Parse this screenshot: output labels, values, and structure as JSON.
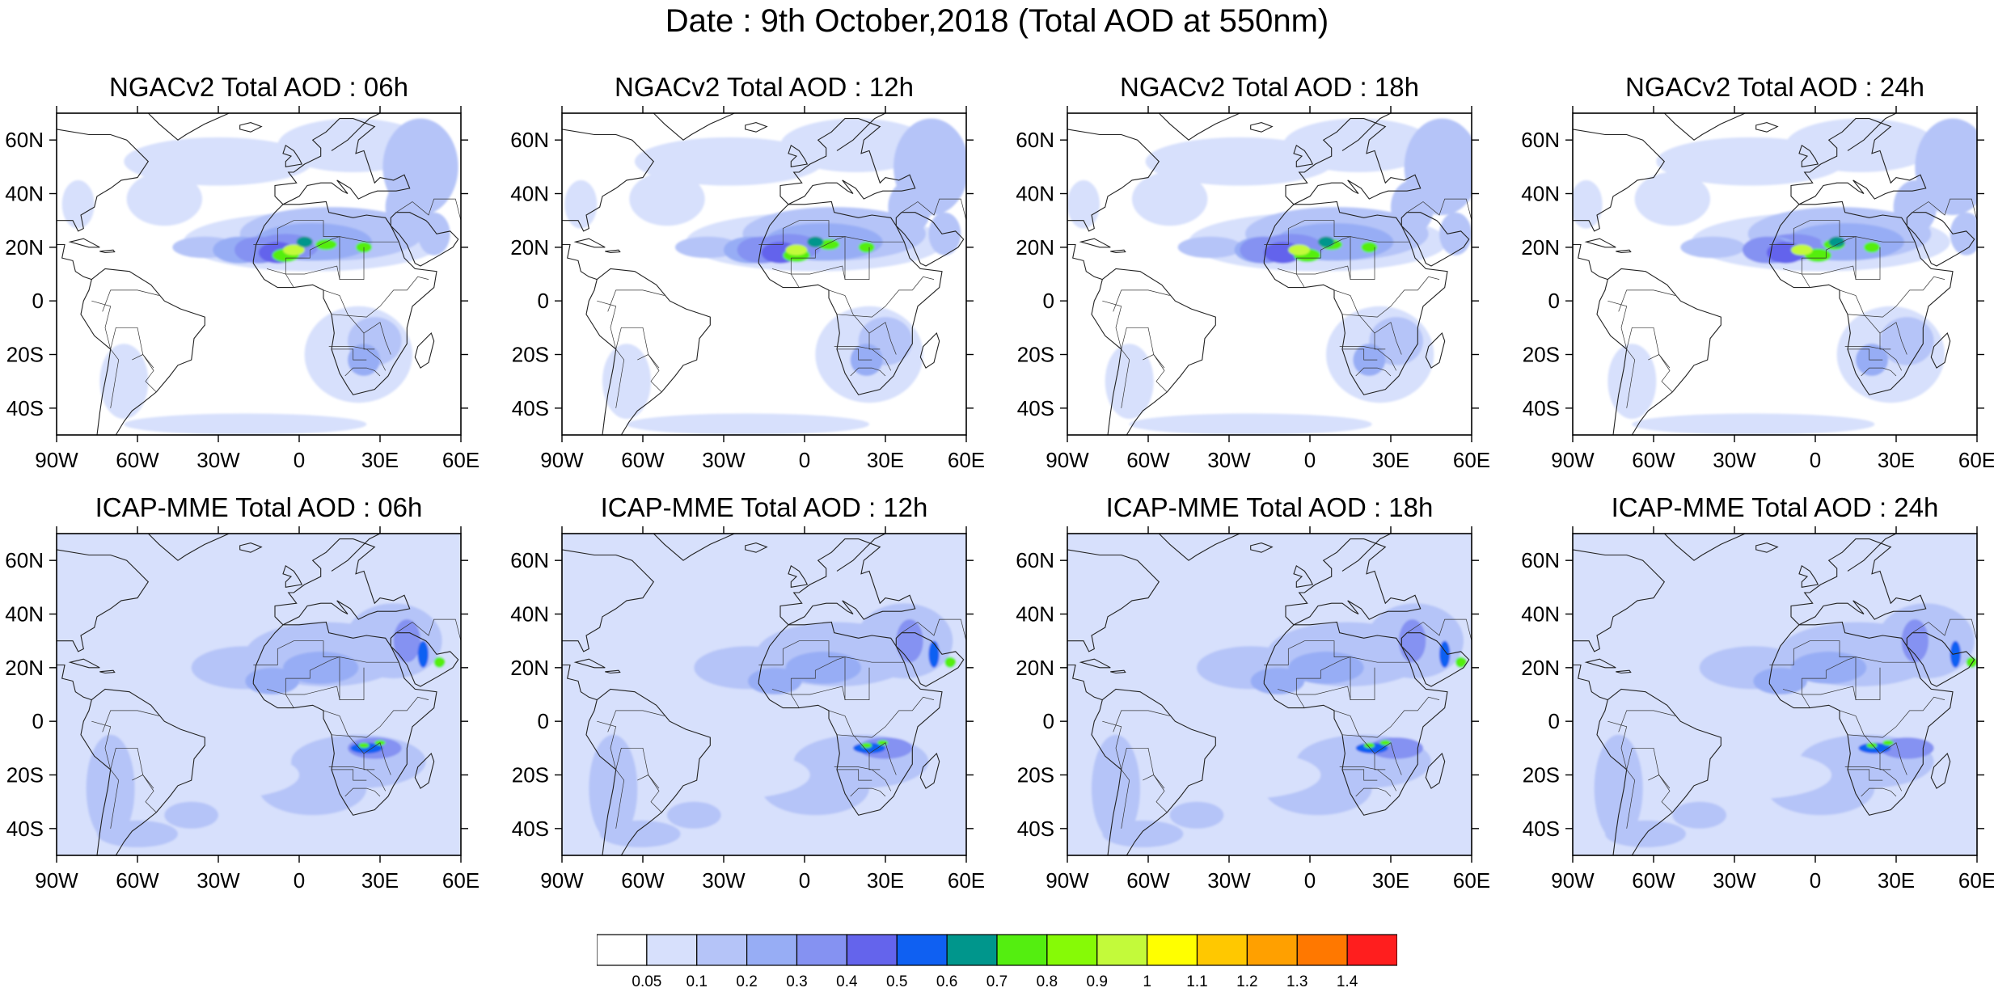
{
  "title": "Date : 9th October,2018 (Total AOD at 550nm)",
  "panels": [
    {
      "title": "NGACv2 Total AOD : 06h",
      "model": "NGACv2",
      "hour": "06h"
    },
    {
      "title": "NGACv2 Total AOD : 12h",
      "model": "NGACv2",
      "hour": "12h"
    },
    {
      "title": "NGACv2 Total AOD : 18h",
      "model": "NGACv2",
      "hour": "18h"
    },
    {
      "title": "NGACv2 Total AOD : 24h",
      "model": "NGACv2",
      "hour": "24h"
    },
    {
      "title": "ICAP-MME Total AOD : 06h",
      "model": "ICAP-MME",
      "hour": "06h"
    },
    {
      "title": "ICAP-MME Total AOD : 12h",
      "model": "ICAP-MME",
      "hour": "12h"
    },
    {
      "title": "ICAP-MME Total AOD : 18h",
      "model": "ICAP-MME",
      "hour": "18h"
    },
    {
      "title": "ICAP-MME Total AOD : 24h",
      "model": "ICAP-MME",
      "hour": "24h"
    }
  ],
  "map": {
    "lon_range": [
      -90,
      60
    ],
    "lat_range": [
      -50,
      70
    ],
    "lon_ticks": [
      {
        "value": -90,
        "label": "90W"
      },
      {
        "value": -60,
        "label": "60W"
      },
      {
        "value": -30,
        "label": "30W"
      },
      {
        "value": 0,
        "label": "0"
      },
      {
        "value": 30,
        "label": "30E"
      },
      {
        "value": 60,
        "label": "60E"
      }
    ],
    "lat_ticks": [
      {
        "value": 60,
        "label": "60N"
      },
      {
        "value": 40,
        "label": "40N"
      },
      {
        "value": 20,
        "label": "20N"
      },
      {
        "value": 0,
        "label": "0"
      },
      {
        "value": -20,
        "label": "20S"
      },
      {
        "value": -40,
        "label": "40S"
      }
    ]
  },
  "colorbar": {
    "colors": [
      "#ffffff",
      "#d7e0fc",
      "#b5c4f8",
      "#97adf5",
      "#8592f2",
      "#6464ec",
      "#0f60f2",
      "#00968c",
      "#54ee10",
      "#86fa06",
      "#c3fa3a",
      "#ffff00",
      "#ffc800",
      "#ffa000",
      "#ff7800",
      "#ff1e1e"
    ],
    "labels": [
      "0.05",
      "0.1",
      "0.2",
      "0.3",
      "0.4",
      "0.5",
      "0.6",
      "0.7",
      "0.8",
      "0.9",
      "1",
      "1.1",
      "1.2",
      "1.3",
      "1.4"
    ]
  }
}
